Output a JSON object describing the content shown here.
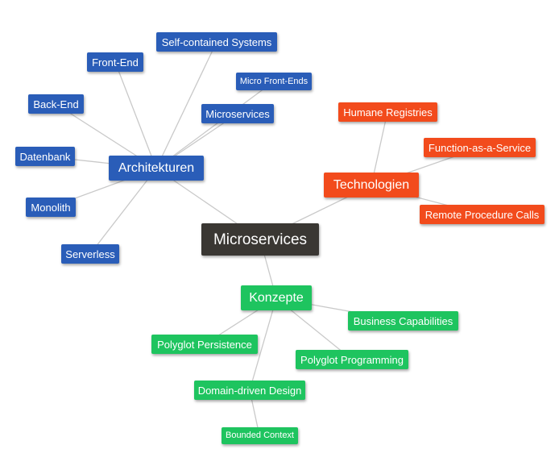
{
  "colors": {
    "root": "#3a3733",
    "architektur": "#2a5db8",
    "technologie": "#f24b1c",
    "konzept": "#1ec45f",
    "edge": "#c9c9c9"
  },
  "mindmap": {
    "root": {
      "label": "Microservices"
    },
    "branches": [
      {
        "id": "architekturen",
        "label": "Architekturen",
        "color": "architektur",
        "children": [
          {
            "id": "self-contained-systems",
            "label": "Self-contained Systems"
          },
          {
            "id": "front-end",
            "label": "Front-End"
          },
          {
            "id": "micro-front-ends",
            "label": "Micro Front-Ends"
          },
          {
            "id": "microservices-arch",
            "label": "Microservices"
          },
          {
            "id": "back-end",
            "label": "Back-End"
          },
          {
            "id": "datenbank",
            "label": "Datenbank"
          },
          {
            "id": "monolith",
            "label": "Monolith"
          },
          {
            "id": "serverless",
            "label": "Serverless"
          }
        ]
      },
      {
        "id": "technologien",
        "label": "Technologien",
        "color": "technologie",
        "children": [
          {
            "id": "humane-registries",
            "label": "Humane Registries"
          },
          {
            "id": "function-as-a-service",
            "label": "Function-as-a-Service"
          },
          {
            "id": "remote-procedure-calls",
            "label": "Remote Procedure Calls"
          }
        ]
      },
      {
        "id": "konzepte",
        "label": "Konzepte",
        "color": "konzept",
        "children": [
          {
            "id": "business-capabilities",
            "label": "Business Capabilities"
          },
          {
            "id": "polyglot-persistence",
            "label": "Polyglot Persistence"
          },
          {
            "id": "polyglot-programming",
            "label": "Polyglot Programming"
          },
          {
            "id": "domain-driven-design",
            "label": "Domain-driven Design",
            "children": [
              {
                "id": "bounded-context",
                "label": "Bounded Context"
              }
            ]
          }
        ]
      }
    ]
  }
}
